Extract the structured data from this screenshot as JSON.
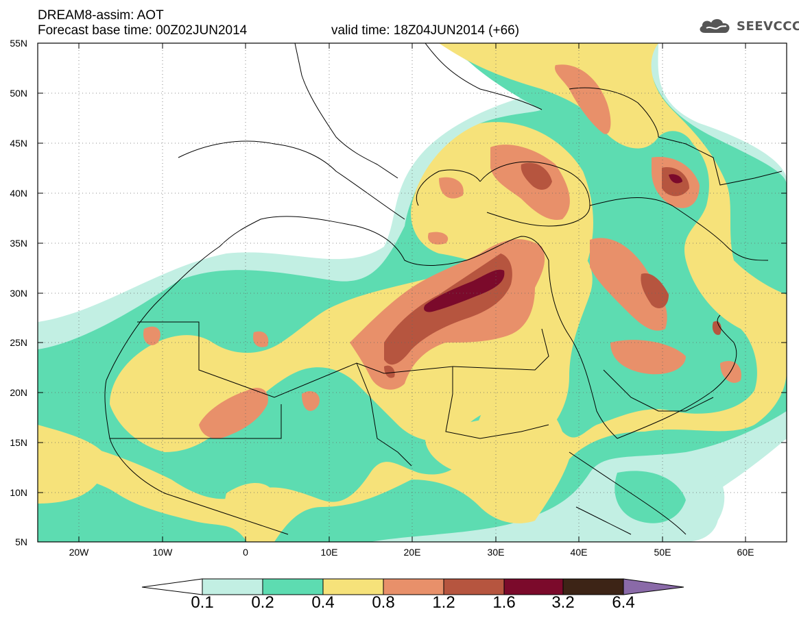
{
  "header": {
    "line1": "DREAM8-assim: AOT",
    "base_time": "Forecast base time: 00Z02JUN2014",
    "valid_time": "valid time: 18Z04JUN2014 (+66)"
  },
  "logo": {
    "icon": "cloud-icon",
    "text": "SEEVCCC"
  },
  "map": {
    "lat_labels": [
      "55N",
      "50N",
      "45N",
      "40N",
      "35N",
      "30N",
      "25N",
      "20N",
      "15N",
      "10N",
      "5N"
    ],
    "lon_labels": [
      "20W",
      "10W",
      "0",
      "10E",
      "20E",
      "30E",
      "40E",
      "50E",
      "60E"
    ]
  },
  "colorbar": {
    "labels": [
      "0.1",
      "0.2",
      "0.4",
      "0.8",
      "1.2",
      "1.6",
      "3.2",
      "6.4"
    ],
    "colors": [
      "#ffffff",
      "#c2efe3",
      "#5ddcb1",
      "#f6e27a",
      "#e8906a",
      "#b6553f",
      "#7b0a2b",
      "#3d2416",
      "#8a6aa8"
    ]
  },
  "colors": {
    "c01": "#c2efe3",
    "c02": "#5ddcb1",
    "c04": "#f6e27a",
    "c08": "#e8906a",
    "c12": "#b6553f",
    "c16": "#7b0a2b"
  }
}
